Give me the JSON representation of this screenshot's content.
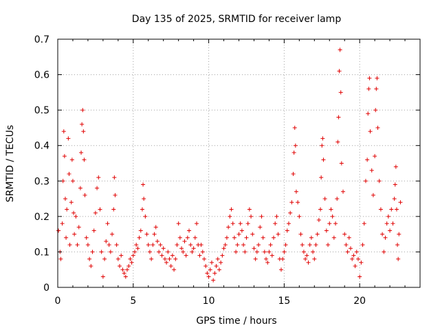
{
  "chart_data": {
    "type": "scatter",
    "title": "Day 135 of 2025, SRMTID for receiver lamp",
    "xlabel": "GPS time / hours",
    "ylabel": "SRMTID / TECUs",
    "xlim": [
      0,
      24
    ],
    "ylim": [
      0,
      0.7
    ],
    "xticks": [
      0,
      5,
      10,
      15,
      20
    ],
    "xtick_labels": [
      "0",
      "5",
      "10",
      "15",
      "20"
    ],
    "yticks": [
      0,
      0.1,
      0.2,
      0.3,
      0.4,
      0.5,
      0.6,
      0.7
    ],
    "ytick_labels": [
      "0",
      "0.1",
      "0.2",
      "0.3",
      "0.4",
      "0.5",
      "0.6",
      "0.7"
    ],
    "grid": true,
    "marker": "+",
    "color": "#e00000",
    "series": [
      {
        "name": "SRMTID",
        "points": [
          [
            0.05,
            0.16
          ],
          [
            0.15,
            0.1
          ],
          [
            0.2,
            0.08
          ],
          [
            0.3,
            0.18
          ],
          [
            0.35,
            0.3
          ],
          [
            0.4,
            0.44
          ],
          [
            0.45,
            0.37
          ],
          [
            0.5,
            0.25
          ],
          [
            0.55,
            0.14
          ],
          [
            0.6,
            0.22
          ],
          [
            0.7,
            0.42
          ],
          [
            0.75,
            0.32
          ],
          [
            0.8,
            0.12
          ],
          [
            0.9,
            0.24
          ],
          [
            0.95,
            0.36
          ],
          [
            1.0,
            0.3
          ],
          [
            1.05,
            0.21
          ],
          [
            1.1,
            0.15
          ],
          [
            1.2,
            0.2
          ],
          [
            1.3,
            0.12
          ],
          [
            1.4,
            0.17
          ],
          [
            1.5,
            0.28
          ],
          [
            1.55,
            0.38
          ],
          [
            1.6,
            0.46
          ],
          [
            1.65,
            0.5
          ],
          [
            1.7,
            0.44
          ],
          [
            1.75,
            0.36
          ],
          [
            1.8,
            0.26
          ],
          [
            1.9,
            0.14
          ],
          [
            2.0,
            0.12
          ],
          [
            2.1,
            0.08
          ],
          [
            2.2,
            0.06
          ],
          [
            2.3,
            0.1
          ],
          [
            2.4,
            0.16
          ],
          [
            2.5,
            0.21
          ],
          [
            2.6,
            0.28
          ],
          [
            2.7,
            0.31
          ],
          [
            2.8,
            0.22
          ],
          [
            2.9,
            0.1
          ],
          [
            3.0,
            0.03
          ],
          [
            3.1,
            0.08
          ],
          [
            3.2,
            0.13
          ],
          [
            3.3,
            0.18
          ],
          [
            3.4,
            0.12
          ],
          [
            3.5,
            0.1
          ],
          [
            3.6,
            0.15
          ],
          [
            3.7,
            0.22
          ],
          [
            3.75,
            0.31
          ],
          [
            3.8,
            0.26
          ],
          [
            3.9,
            0.12
          ],
          [
            4.0,
            0.08
          ],
          [
            4.1,
            0.06
          ],
          [
            4.2,
            0.09
          ],
          [
            4.3,
            0.05
          ],
          [
            4.4,
            0.04
          ],
          [
            4.5,
            0.03
          ],
          [
            4.6,
            0.05
          ],
          [
            4.7,
            0.06
          ],
          [
            4.8,
            0.08
          ],
          [
            4.9,
            0.07
          ],
          [
            5.0,
            0.09
          ],
          [
            5.1,
            0.1
          ],
          [
            5.2,
            0.12
          ],
          [
            5.3,
            0.11
          ],
          [
            5.4,
            0.14
          ],
          [
            5.5,
            0.16
          ],
          [
            5.6,
            0.22
          ],
          [
            5.65,
            0.29
          ],
          [
            5.7,
            0.25
          ],
          [
            5.8,
            0.2
          ],
          [
            5.9,
            0.15
          ],
          [
            6.0,
            0.12
          ],
          [
            6.1,
            0.1
          ],
          [
            6.2,
            0.08
          ],
          [
            6.3,
            0.12
          ],
          [
            6.4,
            0.15
          ],
          [
            6.5,
            0.17
          ],
          [
            6.6,
            0.13
          ],
          [
            6.7,
            0.1
          ],
          [
            6.8,
            0.12
          ],
          [
            6.9,
            0.09
          ],
          [
            7.0,
            0.11
          ],
          [
            7.1,
            0.08
          ],
          [
            7.2,
            0.07
          ],
          [
            7.3,
            0.1
          ],
          [
            7.4,
            0.08
          ],
          [
            7.5,
            0.06
          ],
          [
            7.6,
            0.09
          ],
          [
            7.7,
            0.05
          ],
          [
            7.8,
            0.08
          ],
          [
            7.9,
            0.12
          ],
          [
            8.0,
            0.18
          ],
          [
            8.1,
            0.14
          ],
          [
            8.2,
            0.11
          ],
          [
            8.3,
            0.1
          ],
          [
            8.4,
            0.13
          ],
          [
            8.5,
            0.09
          ],
          [
            8.6,
            0.14
          ],
          [
            8.7,
            0.16
          ],
          [
            8.8,
            0.12
          ],
          [
            8.9,
            0.1
          ],
          [
            9.0,
            0.11
          ],
          [
            9.1,
            0.14
          ],
          [
            9.2,
            0.18
          ],
          [
            9.3,
            0.12
          ],
          [
            9.4,
            0.09
          ],
          [
            9.5,
            0.12
          ],
          [
            9.6,
            0.1
          ],
          [
            9.7,
            0.08
          ],
          [
            9.8,
            0.06
          ],
          [
            9.9,
            0.04
          ],
          [
            10.0,
            0.03
          ],
          [
            10.1,
            0.05
          ],
          [
            10.2,
            0.07
          ],
          [
            10.3,
            0.02
          ],
          [
            10.4,
            0.04
          ],
          [
            10.5,
            0.06
          ],
          [
            10.6,
            0.08
          ],
          [
            10.7,
            0.05
          ],
          [
            10.8,
            0.07
          ],
          [
            10.9,
            0.09
          ],
          [
            11.0,
            0.11
          ],
          [
            11.1,
            0.12
          ],
          [
            11.2,
            0.14
          ],
          [
            11.3,
            0.17
          ],
          [
            11.4,
            0.2
          ],
          [
            11.5,
            0.22
          ],
          [
            11.6,
            0.18
          ],
          [
            11.7,
            0.14
          ],
          [
            11.8,
            0.1
          ],
          [
            11.9,
            0.12
          ],
          [
            12.0,
            0.15
          ],
          [
            12.1,
            0.18
          ],
          [
            12.2,
            0.16
          ],
          [
            12.3,
            0.12
          ],
          [
            12.4,
            0.1
          ],
          [
            12.5,
            0.14
          ],
          [
            12.6,
            0.18
          ],
          [
            12.7,
            0.22
          ],
          [
            12.8,
            0.2
          ],
          [
            12.9,
            0.15
          ],
          [
            13.0,
            0.11
          ],
          [
            13.1,
            0.08
          ],
          [
            13.2,
            0.1
          ],
          [
            13.3,
            0.12
          ],
          [
            13.4,
            0.17
          ],
          [
            13.5,
            0.2
          ],
          [
            13.6,
            0.14
          ],
          [
            13.7,
            0.1
          ],
          [
            13.8,
            0.08
          ],
          [
            13.9,
            0.07
          ],
          [
            14.0,
            0.1
          ],
          [
            14.1,
            0.12
          ],
          [
            14.2,
            0.09
          ],
          [
            14.3,
            0.14
          ],
          [
            14.4,
            0.18
          ],
          [
            14.5,
            0.2
          ],
          [
            14.6,
            0.15
          ],
          [
            14.7,
            0.08
          ],
          [
            14.8,
            0.05
          ],
          [
            14.9,
            0.08
          ],
          [
            15.0,
            0.1
          ],
          [
            15.1,
            0.12
          ],
          [
            15.2,
            0.16
          ],
          [
            15.3,
            0.18
          ],
          [
            15.4,
            0.21
          ],
          [
            15.5,
            0.24
          ],
          [
            15.6,
            0.32
          ],
          [
            15.65,
            0.38
          ],
          [
            15.7,
            0.45
          ],
          [
            15.75,
            0.4
          ],
          [
            15.8,
            0.27
          ],
          [
            15.9,
            0.24
          ],
          [
            16.0,
            0.2
          ],
          [
            16.1,
            0.15
          ],
          [
            16.2,
            0.12
          ],
          [
            16.3,
            0.1
          ],
          [
            16.4,
            0.08
          ],
          [
            16.5,
            0.09
          ],
          [
            16.6,
            0.07
          ],
          [
            16.7,
            0.12
          ],
          [
            16.8,
            0.14
          ],
          [
            16.9,
            0.1
          ],
          [
            17.0,
            0.08
          ],
          [
            17.1,
            0.12
          ],
          [
            17.2,
            0.15
          ],
          [
            17.3,
            0.19
          ],
          [
            17.4,
            0.22
          ],
          [
            17.45,
            0.31
          ],
          [
            17.5,
            0.4
          ],
          [
            17.55,
            0.42
          ],
          [
            17.6,
            0.36
          ],
          [
            17.7,
            0.25
          ],
          [
            17.8,
            0.16
          ],
          [
            17.9,
            0.12
          ],
          [
            18.0,
            0.18
          ],
          [
            18.1,
            0.22
          ],
          [
            18.2,
            0.2
          ],
          [
            18.3,
            0.14
          ],
          [
            18.4,
            0.18
          ],
          [
            18.5,
            0.25
          ],
          [
            18.55,
            0.41
          ],
          [
            18.6,
            0.48
          ],
          [
            18.65,
            0.61
          ],
          [
            18.7,
            0.67
          ],
          [
            18.75,
            0.55
          ],
          [
            18.8,
            0.35
          ],
          [
            18.9,
            0.27
          ],
          [
            19.0,
            0.15
          ],
          [
            19.1,
            0.12
          ],
          [
            19.2,
            0.1
          ],
          [
            19.3,
            0.14
          ],
          [
            19.4,
            0.11
          ],
          [
            19.5,
            0.08
          ],
          [
            19.6,
            0.09
          ],
          [
            19.7,
            0.06
          ],
          [
            19.8,
            0.1
          ],
          [
            19.9,
            0.08
          ],
          [
            20.0,
            0.03
          ],
          [
            20.1,
            0.07
          ],
          [
            20.2,
            0.12
          ],
          [
            20.3,
            0.18
          ],
          [
            20.4,
            0.3
          ],
          [
            20.5,
            0.36
          ],
          [
            20.55,
            0.49
          ],
          [
            20.6,
            0.56
          ],
          [
            20.65,
            0.59
          ],
          [
            20.7,
            0.44
          ],
          [
            20.8,
            0.33
          ],
          [
            20.9,
            0.26
          ],
          [
            21.0,
            0.37
          ],
          [
            21.05,
            0.5
          ],
          [
            21.1,
            0.56
          ],
          [
            21.15,
            0.59
          ],
          [
            21.2,
            0.45
          ],
          [
            21.3,
            0.3
          ],
          [
            21.4,
            0.22
          ],
          [
            21.5,
            0.15
          ],
          [
            21.6,
            0.1
          ],
          [
            21.7,
            0.14
          ],
          [
            21.8,
            0.18
          ],
          [
            21.9,
            0.2
          ],
          [
            22.0,
            0.16
          ],
          [
            22.1,
            0.22
          ],
          [
            22.2,
            0.18
          ],
          [
            22.3,
            0.25
          ],
          [
            22.35,
            0.29
          ],
          [
            22.4,
            0.34
          ],
          [
            22.45,
            0.22
          ],
          [
            22.5,
            0.12
          ],
          [
            22.55,
            0.08
          ],
          [
            22.6,
            0.15
          ],
          [
            22.7,
            0.24
          ]
        ]
      }
    ]
  }
}
